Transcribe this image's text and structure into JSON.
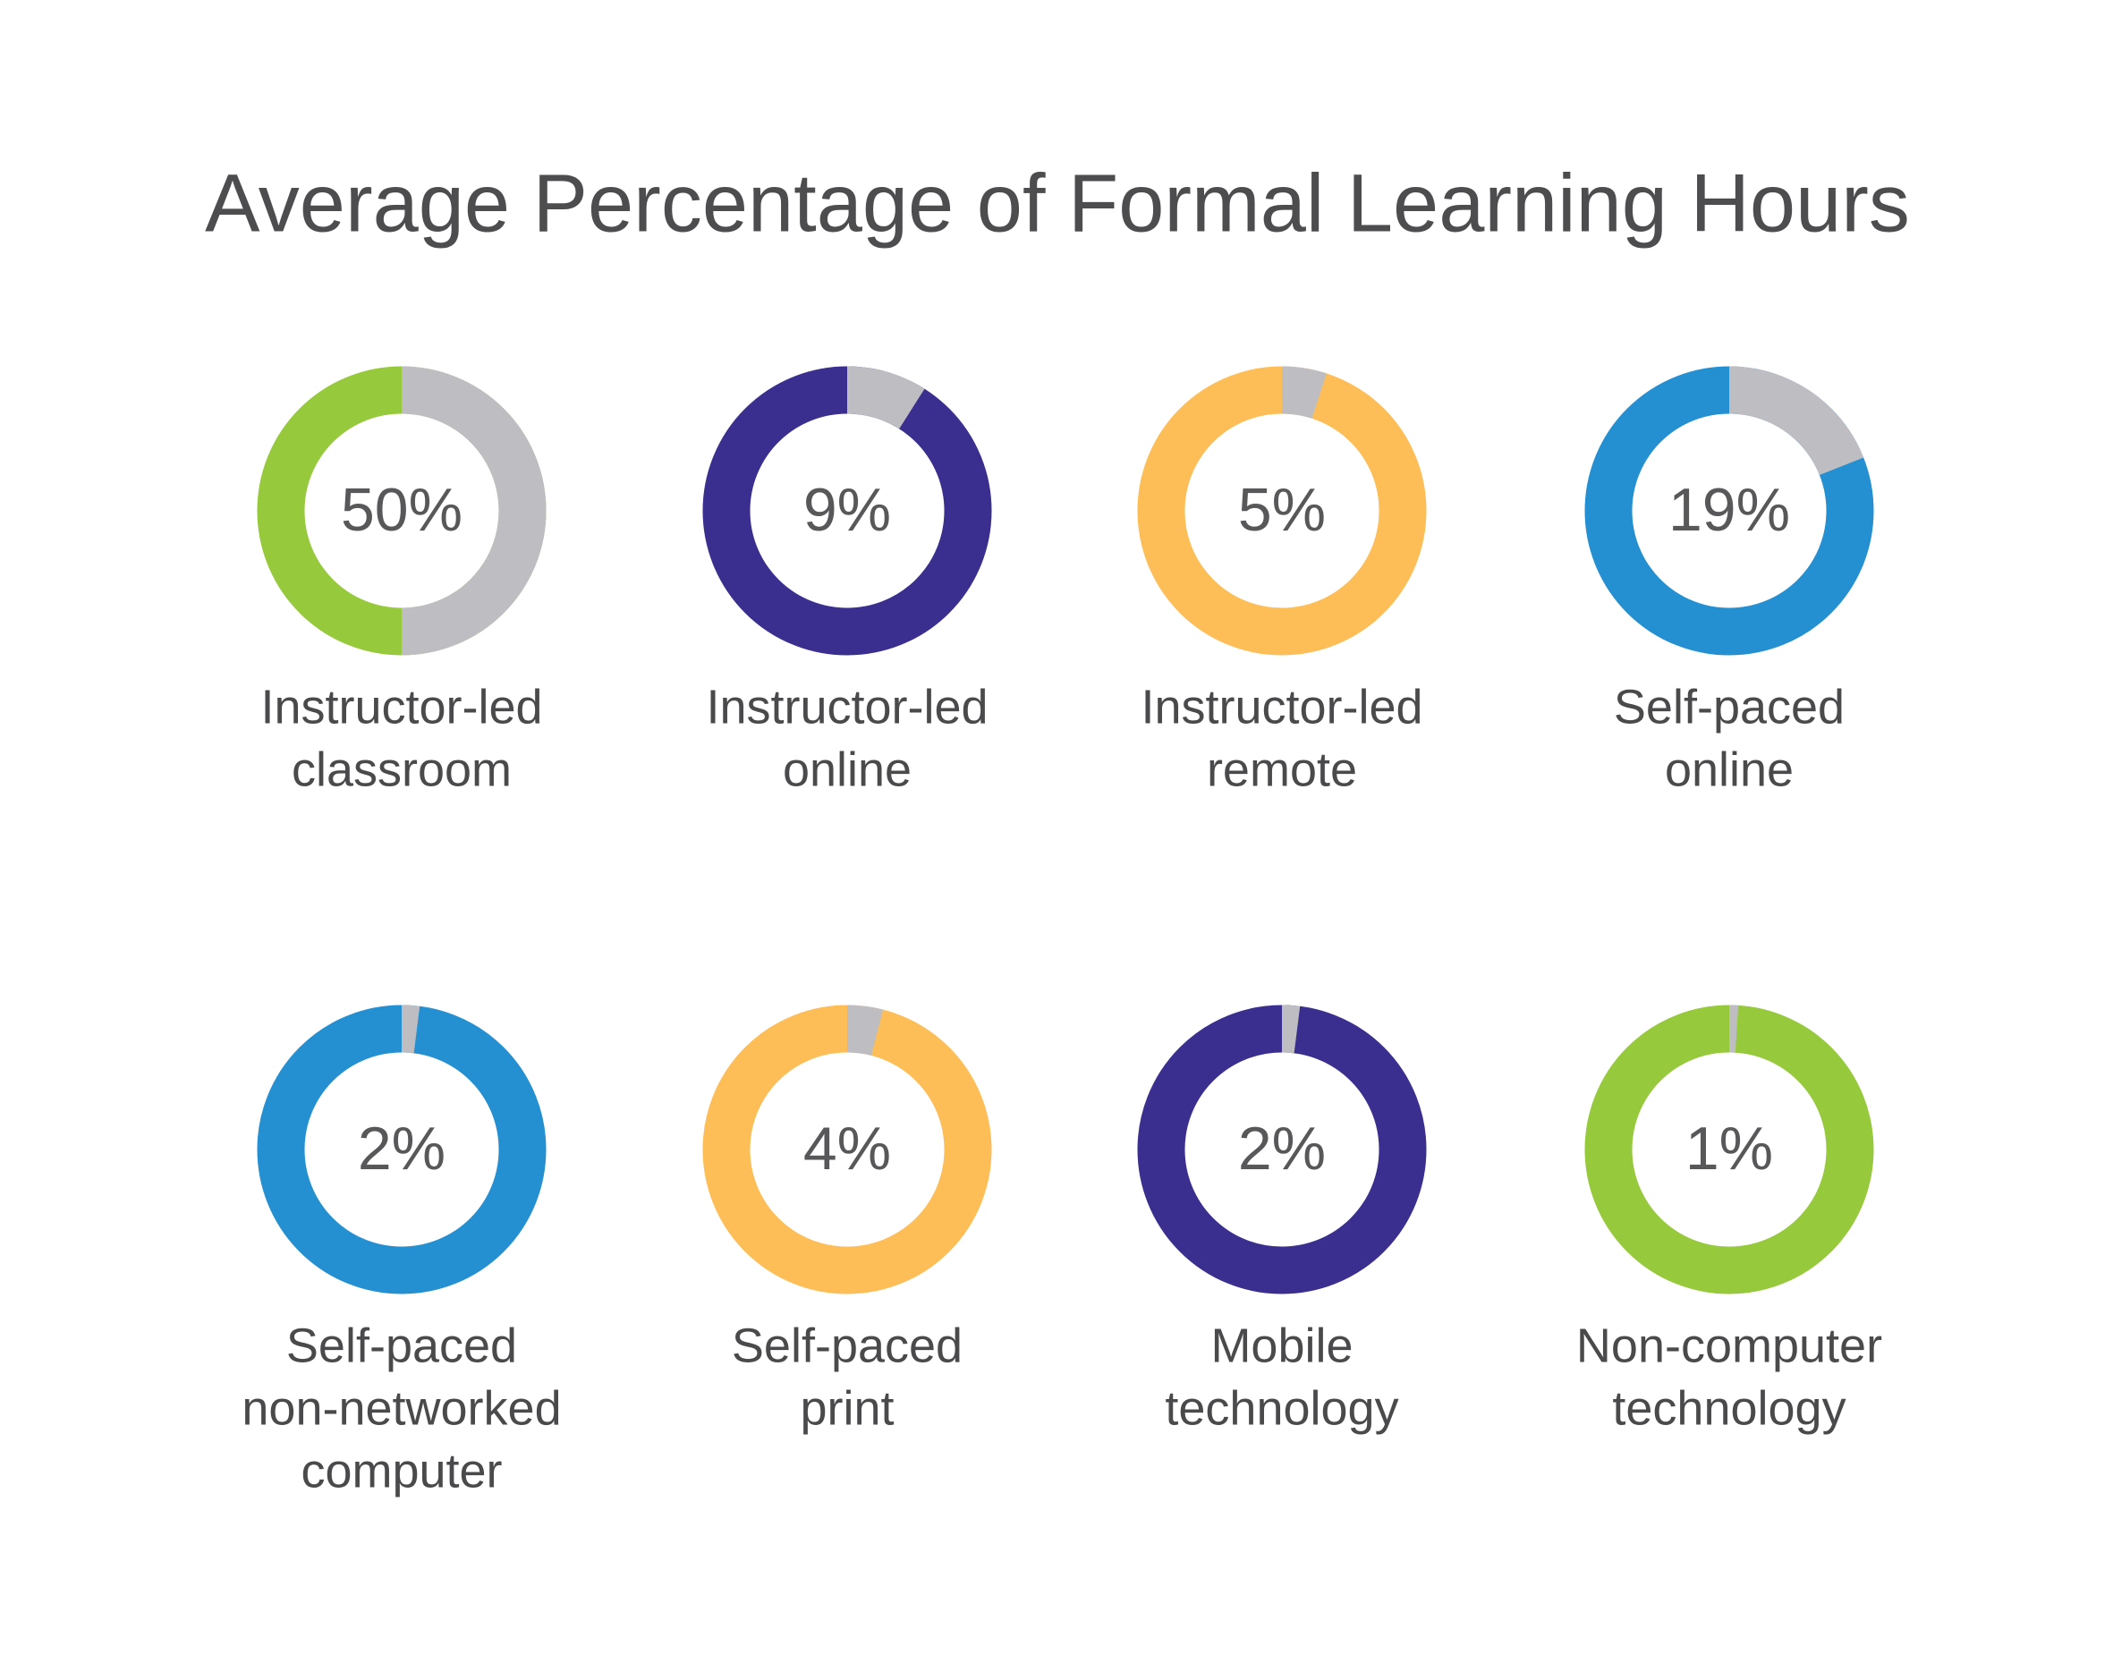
{
  "title": "Average Percentage of Formal Learning Hours",
  "chart_data": [
    {
      "type": "donut",
      "label": [
        "Instructor-led",
        "classroom"
      ],
      "values": [
        50
      ],
      "value_labels": [
        "50%"
      ],
      "color": "#bdbdc2",
      "ring_color": "#97c93d"
    },
    {
      "type": "donut",
      "label": [
        "Instructor-led",
        "online"
      ],
      "values": [
        9
      ],
      "value_labels": [
        "9%"
      ],
      "color": "#bdbdc2",
      "ring_color": "#3a2f8e"
    },
    {
      "type": "donut",
      "label": [
        "Instructor-led",
        "remote"
      ],
      "values": [
        5
      ],
      "value_labels": [
        "5%"
      ],
      "color": "#bdbdc2",
      "ring_color": "#fdbe58"
    },
    {
      "type": "donut",
      "label": [
        "Self-paced",
        "online"
      ],
      "values": [
        19
      ],
      "value_labels": [
        "19%"
      ],
      "color": "#bdbdc2",
      "ring_color": "#2490d1"
    },
    {
      "type": "donut",
      "label": [
        "Self-paced",
        "non-networked",
        "computer"
      ],
      "values": [
        2
      ],
      "value_labels": [
        "2%"
      ],
      "color": "#bdbdc2",
      "ring_color": "#2490d1"
    },
    {
      "type": "donut",
      "label": [
        "Self-paced",
        "print"
      ],
      "values": [
        4
      ],
      "value_labels": [
        "4%"
      ],
      "color": "#bdbdc2",
      "ring_color": "#fdbe58"
    },
    {
      "type": "donut",
      "label": [
        "Mobile",
        "technology"
      ],
      "values": [
        2
      ],
      "value_labels": [
        "2%"
      ],
      "color": "#bdbdc2",
      "ring_color": "#3a2f8e"
    },
    {
      "type": "donut",
      "label": [
        "Non-computer",
        "technology"
      ],
      "values": [
        1
      ],
      "value_labels": [
        "1%"
      ],
      "color": "#bdbdc2",
      "ring_color": "#97c93d"
    }
  ]
}
